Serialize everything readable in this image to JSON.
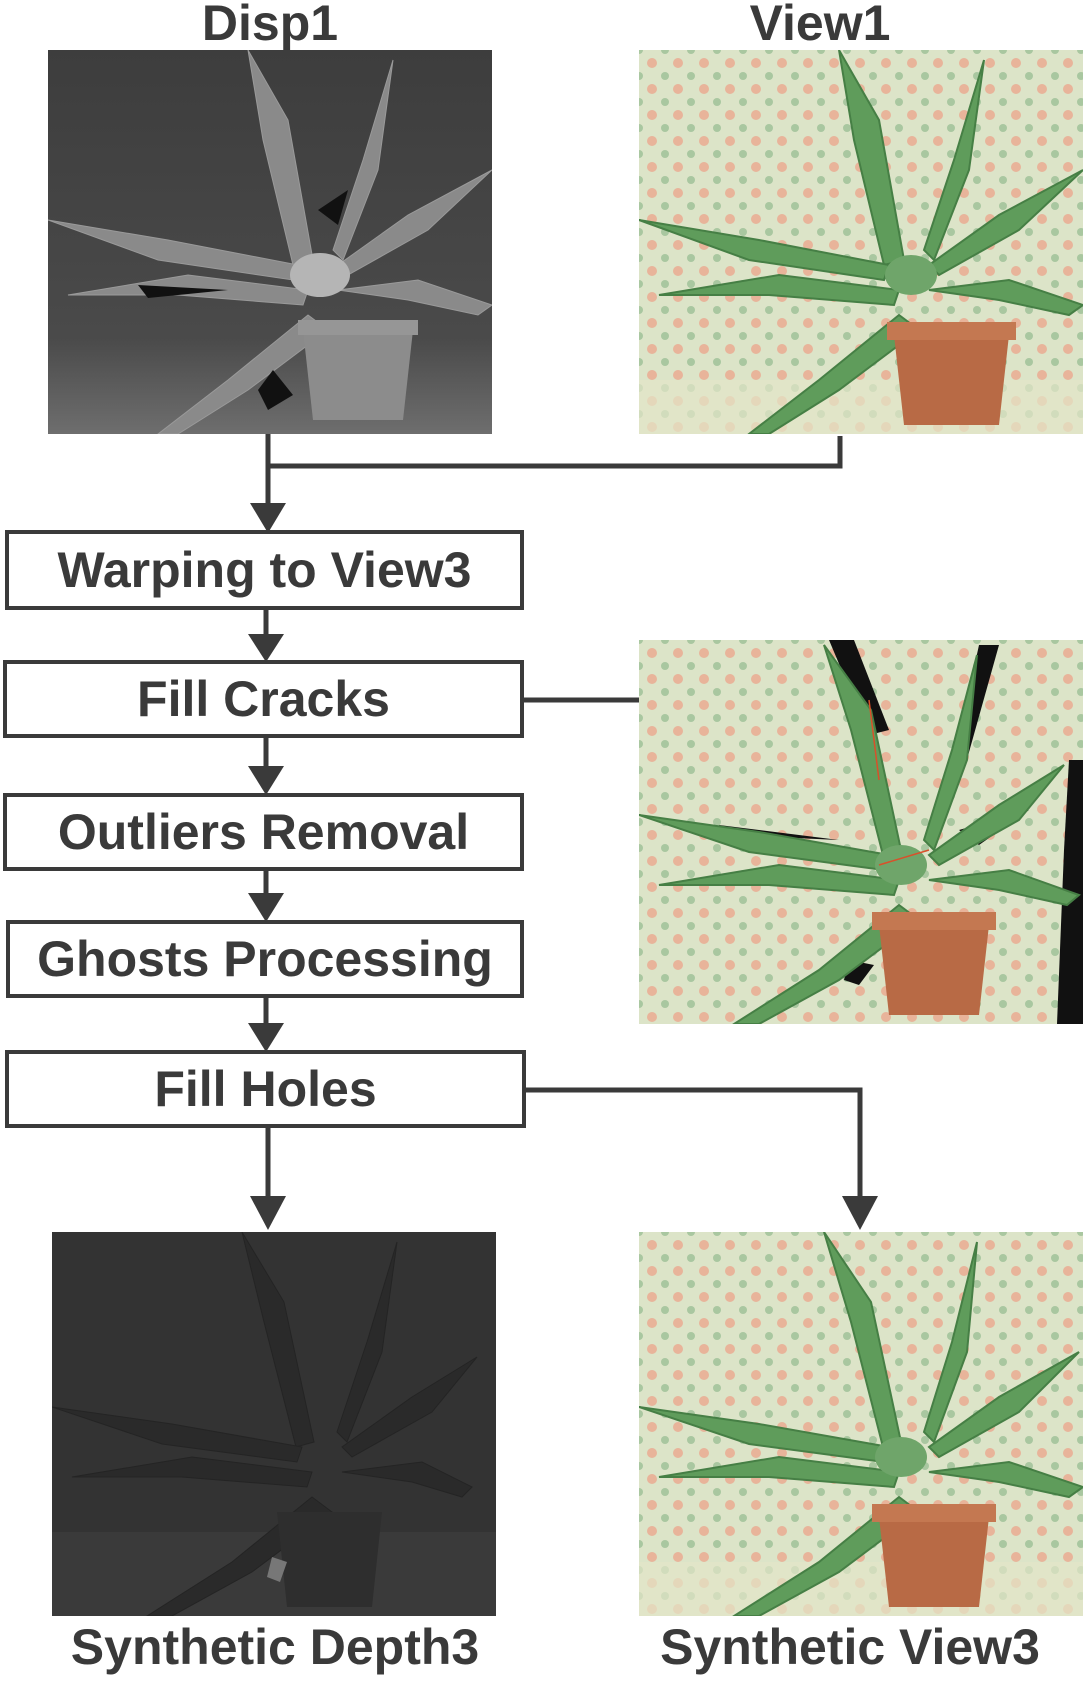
{
  "titles": {
    "disp1": "Disp1",
    "view1": "View1",
    "synthetic_depth3": "Synthetic Depth3",
    "synthetic_view3": "Synthetic View3"
  },
  "steps": {
    "warping": "Warping to View3",
    "fill_cracks": "Fill Cracks",
    "outliers": "Outliers Removal",
    "ghosts": "Ghosts Processing",
    "fill_holes": "Fill Holes"
  },
  "colors": {
    "line": "#3a3a3a",
    "depth_bg": "#3c3c3c",
    "depth_bg_dark": "#2c2c2c",
    "wallpaper": "#d9e2c6",
    "leaf": "#5e9a5a",
    "pot": "#b86a45"
  }
}
